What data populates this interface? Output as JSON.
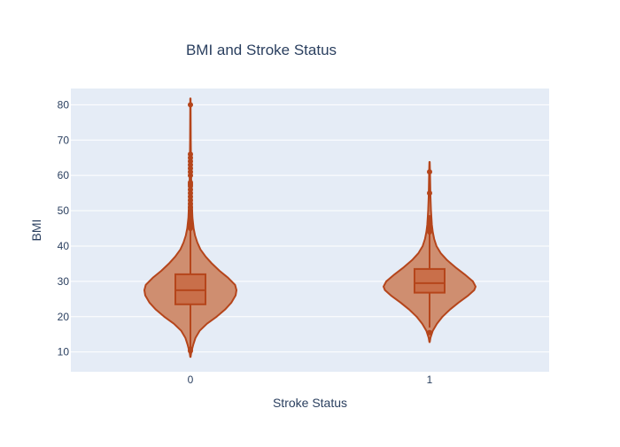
{
  "chart_data": {
    "type": "violin",
    "title": "BMI and Stroke Status",
    "xlabel": "Stroke Status",
    "ylabel": "BMI",
    "categories": [
      "0",
      "1"
    ],
    "ylim": [
      4.4,
      84.6
    ],
    "yticks": [
      10,
      20,
      30,
      40,
      50,
      60,
      70,
      80
    ],
    "grid": true,
    "legend": "none",
    "colors": {
      "plot_bg": "#e5ecf6",
      "grid": "#ffffff",
      "violin_fill": "#cf8e70",
      "violin_line": "#b5451b",
      "box_fill": "#c96f4a",
      "text": "#2a3f5f"
    },
    "violins": [
      {
        "category": "0",
        "min": 8.6,
        "q1": 23.5,
        "median": 27.5,
        "q3": 32.0,
        "max": 81.8,
        "whisker_low": 11.3,
        "whisker_high": 44.8,
        "outliers": [
          10.3,
          10.8,
          45.0,
          45.5,
          46.0,
          47.0,
          48.0,
          49.0,
          50.0,
          51.0,
          52.0,
          53.0,
          54.0,
          55.0,
          56.0,
          57.0,
          57.5,
          58.0,
          60.0,
          61.0,
          62.0,
          63.0,
          64.0,
          65.0,
          66.0,
          80.0
        ],
        "density": [
          [
            8.6,
            0.004
          ],
          [
            10,
            0.02
          ],
          [
            12,
            0.06
          ],
          [
            14,
            0.11
          ],
          [
            16,
            0.2
          ],
          [
            18,
            0.36
          ],
          [
            20,
            0.57
          ],
          [
            22,
            0.75
          ],
          [
            24,
            0.89
          ],
          [
            26,
            0.98
          ],
          [
            27.5,
            1.0
          ],
          [
            29,
            0.97
          ],
          [
            31,
            0.82
          ],
          [
            33,
            0.63
          ],
          [
            35,
            0.47
          ],
          [
            37,
            0.33
          ],
          [
            39,
            0.22
          ],
          [
            41,
            0.15
          ],
          [
            43,
            0.1
          ],
          [
            45,
            0.07
          ],
          [
            48,
            0.045
          ],
          [
            52,
            0.03
          ],
          [
            56,
            0.022
          ],
          [
            60,
            0.016
          ],
          [
            65,
            0.012
          ],
          [
            70,
            0.008
          ],
          [
            75,
            0.006
          ],
          [
            80,
            0.004
          ],
          [
            81.8,
            0.003
          ]
        ]
      },
      {
        "category": "1",
        "min": 12.8,
        "q1": 26.8,
        "median": 29.5,
        "q3": 33.5,
        "max": 63.8,
        "whisker_low": 16.9,
        "whisker_high": 43.5,
        "outliers": [
          15.5,
          44.0,
          45.0,
          46.0,
          47.0,
          48.0,
          55.0,
          61.0
        ],
        "density": [
          [
            12.8,
            0.004
          ],
          [
            14,
            0.02
          ],
          [
            16,
            0.07
          ],
          [
            18,
            0.16
          ],
          [
            20,
            0.28
          ],
          [
            22,
            0.44
          ],
          [
            24,
            0.63
          ],
          [
            26,
            0.84
          ],
          [
            27.5,
            0.97
          ],
          [
            28.5,
            1.0
          ],
          [
            30,
            0.94
          ],
          [
            32,
            0.76
          ],
          [
            34,
            0.56
          ],
          [
            36,
            0.38
          ],
          [
            38,
            0.24
          ],
          [
            40,
            0.15
          ],
          [
            42,
            0.1
          ],
          [
            44,
            0.07
          ],
          [
            46,
            0.05
          ],
          [
            50,
            0.03
          ],
          [
            54,
            0.02
          ],
          [
            58,
            0.014
          ],
          [
            62,
            0.008
          ],
          [
            63.8,
            0.004
          ]
        ]
      }
    ]
  }
}
